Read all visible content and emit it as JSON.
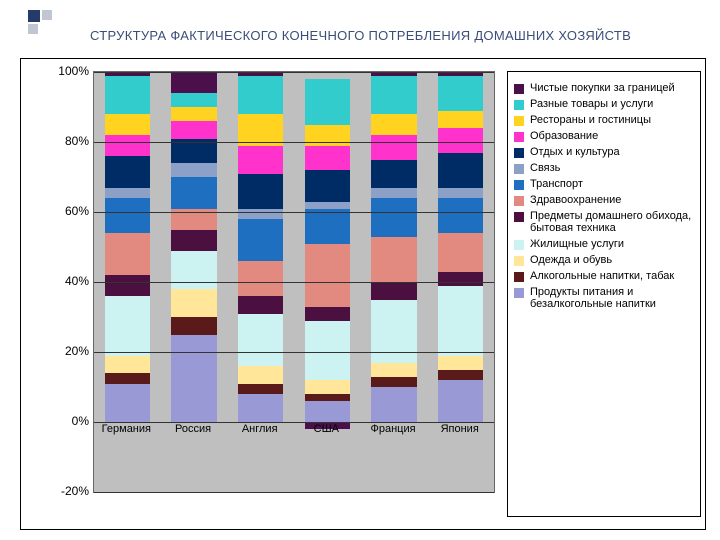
{
  "title": "СТРУКТУРА ФАКТИЧЕСКОГО КОНЕЧНОГО ПОТРЕБЛЕНИЯ ДОМАШНИХ ХОЗЯЙСТВ",
  "title_color": "#3b4e78",
  "title_fontsize": 13,
  "chart": {
    "type": "stacked_bar_100",
    "background": "#bfbfbf",
    "grid_color": "#333333",
    "ylim": [
      -20,
      100
    ],
    "ytick_step": 20,
    "yticks": [
      "-20%",
      "0%",
      "20%",
      "40%",
      "60%",
      "80%",
      "100%"
    ],
    "categories": [
      "Германия",
      "Россия",
      "Англия",
      "США",
      "Франция",
      "Япония"
    ],
    "series": [
      {
        "key": "net_abroad",
        "label": "Чистые покупки за границей",
        "color": "#4b0f4b"
      },
      {
        "key": "misc",
        "label": "Разные товары и услуги",
        "color": "#33cccc"
      },
      {
        "key": "rest_hotel",
        "label": "Рестораны и гостиницы",
        "color": "#ffd320"
      },
      {
        "key": "education",
        "label": "Образование",
        "color": "#ff33cc"
      },
      {
        "key": "recreation",
        "label": "Отдых и культура",
        "color": "#002c66"
      },
      {
        "key": "communication",
        "label": "Связь",
        "color": "#8ca0c8"
      },
      {
        "key": "transport",
        "label": "Транспорт",
        "color": "#1f6fc0"
      },
      {
        "key": "health",
        "label": "Здравоохранение",
        "color": "#e28a80"
      },
      {
        "key": "household",
        "label": "Предметы домашнего обихода, бытовая техника",
        "color": "#4b1040"
      },
      {
        "key": "housing",
        "label": "Жилищные услуги",
        "color": "#ccf2f2"
      },
      {
        "key": "clothing",
        "label": "Одежда и обувь",
        "color": "#ffe699"
      },
      {
        "key": "alcohol",
        "label": "Алкогольные напитки, табак",
        "color": "#5a1a1a"
      },
      {
        "key": "food",
        "label": "Продукты питания и безалкогольные напитки",
        "color": "#9999d6"
      }
    ],
    "data": {
      "Германия": {
        "food": 11,
        "alcohol": 3,
        "clothing": 5,
        "housing": 17,
        "household": 6,
        "health": 12,
        "transport": 10,
        "communication": 3,
        "recreation": 9,
        "education": 6,
        "rest_hotel": 6,
        "misc": 11,
        "net_abroad": 1
      },
      "Россия": {
        "food": 25,
        "alcohol": 5,
        "clothing": 8,
        "housing": 11,
        "household": 6,
        "health": 6,
        "transport": 9,
        "communication": 4,
        "recreation": 7,
        "education": 5,
        "rest_hotel": 4,
        "misc": 4,
        "net_abroad": 6
      },
      "Англия": {
        "food": 8,
        "alcohol": 3,
        "clothing": 5,
        "housing": 15,
        "household": 5,
        "health": 10,
        "transport": 12,
        "communication": 3,
        "recreation": 10,
        "education": 8,
        "rest_hotel": 9,
        "misc": 11,
        "net_abroad": 1
      },
      "США": {
        "food": 6,
        "alcohol": 2,
        "clothing": 4,
        "housing": 17,
        "household": 4,
        "health": 18,
        "transport": 10,
        "communication": 2,
        "recreation": 9,
        "education": 7,
        "rest_hotel": 6,
        "misc": 13,
        "net_abroad": -2
      },
      "Франция": {
        "food": 10,
        "alcohol": 3,
        "clothing": 4,
        "housing": 18,
        "household": 5,
        "health": 13,
        "transport": 11,
        "communication": 3,
        "recreation": 8,
        "education": 7,
        "rest_hotel": 6,
        "misc": 11,
        "net_abroad": 1
      },
      "Япония": {
        "food": 12,
        "alcohol": 3,
        "clothing": 4,
        "housing": 20,
        "household": 4,
        "health": 11,
        "transport": 10,
        "communication": 3,
        "recreation": 10,
        "education": 7,
        "rest_hotel": 5,
        "misc": 10,
        "net_abroad": 1
      }
    },
    "bar_width_pct": 68
  }
}
